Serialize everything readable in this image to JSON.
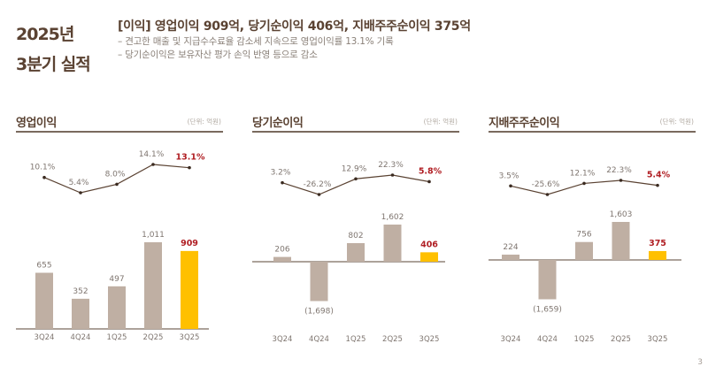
{
  "header": {
    "title_line1": "2025년",
    "title_line2": "3분기 실적",
    "headline": "[이익] 영업이익 909억,  당기순이익 406억, 지배주주순이익 375억",
    "bullets": [
      "– 견고한 매출 및 지급수수료율 감소세 지속으로 영업이익률 13.1% 기록",
      "– 당기순이익은 보유자산 평가 손익 반영 등으로 감소"
    ]
  },
  "colors": {
    "bar_default": "#bfafa3",
    "bar_highlight": "#ffc000",
    "highlight_text": "#b01e23",
    "line": "#5a4232",
    "label": "#7f7670",
    "title": "#5a4232"
  },
  "page_number": "3",
  "chart_data": [
    {
      "type": "bar+line",
      "title": "영업이익",
      "unit": "(단위: 억원)",
      "categories": [
        "3Q24",
        "4Q24",
        "1Q25",
        "2Q25",
        "3Q25"
      ],
      "bar_values": [
        655,
        352,
        497,
        1011,
        909
      ],
      "bar_labels": [
        "655",
        "352",
        "497",
        "1,011",
        "909"
      ],
      "line_values": [
        10.1,
        5.4,
        8.0,
        14.1,
        13.1
      ],
      "line_labels": [
        "10.1%",
        "5.4%",
        "8.0%",
        "14.1%",
        "13.1%"
      ],
      "highlight_index": 4
    },
    {
      "type": "bar+line",
      "title": "당기순이익",
      "unit": "(단위: 억원)",
      "categories": [
        "3Q24",
        "4Q24",
        "1Q25",
        "2Q25",
        "3Q25"
      ],
      "bar_values": [
        206,
        -1698,
        802,
        1602,
        406
      ],
      "bar_labels": [
        "206",
        "(1,698)",
        "802",
        "1,602",
        "406"
      ],
      "line_values": [
        3.2,
        -26.2,
        12.9,
        22.3,
        5.8
      ],
      "line_labels": [
        "3.2%",
        "-26.2%",
        "12.9%",
        "22.3%",
        "5.8%"
      ],
      "highlight_index": 4
    },
    {
      "type": "bar+line",
      "title": "지배주주순이익",
      "unit": "(단위: 억원)",
      "categories": [
        "3Q24",
        "4Q24",
        "1Q25",
        "2Q25",
        "3Q25"
      ],
      "bar_values": [
        224,
        -1659,
        756,
        1603,
        375
      ],
      "bar_labels": [
        "224",
        "(1,659)",
        "756",
        "1,603",
        "375"
      ],
      "line_values": [
        3.5,
        -25.6,
        12.1,
        22.3,
        5.4
      ],
      "line_labels": [
        "3.5%",
        "-25.6%",
        "12.1%",
        "22.3%",
        "5.4%"
      ],
      "highlight_index": 4
    }
  ]
}
